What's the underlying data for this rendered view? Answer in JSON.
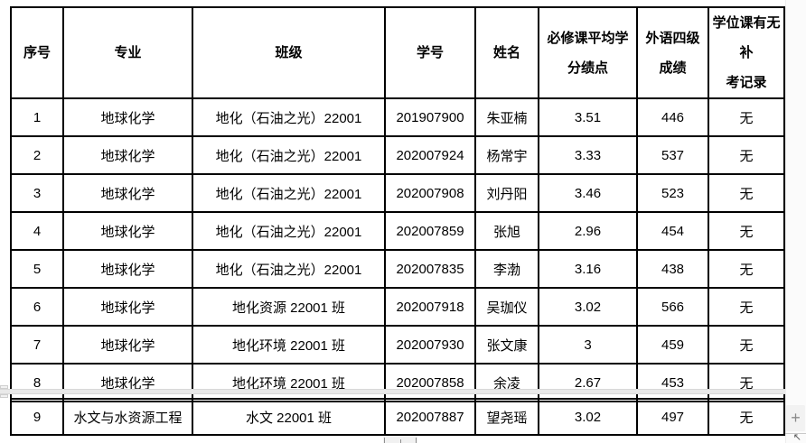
{
  "icons": {
    "plus": "+",
    "resize_arrow": "↖"
  },
  "scrollbar": {
    "plus_label": "+"
  },
  "table": {
    "headers": [
      "序号",
      "专业",
      "班级",
      "学号",
      "姓名",
      "必修课平均学\n分绩点",
      "外语四级\n成绩",
      "学位课有无补\n考记录"
    ],
    "rows": [
      [
        "1",
        "地球化学",
        "地化（石油之光）22001",
        "201907900",
        "朱亚楠",
        "3.51",
        "446",
        "无"
      ],
      [
        "2",
        "地球化学",
        "地化（石油之光）22001",
        "202007924",
        "杨常宇",
        "3.33",
        "537",
        "无"
      ],
      [
        "3",
        "地球化学",
        "地化（石油之光）22001",
        "202007908",
        "刘丹阳",
        "3.46",
        "523",
        "无"
      ],
      [
        "4",
        "地球化学",
        "地化（石油之光）22001",
        "202007859",
        "张旭",
        "2.96",
        "454",
        "无"
      ],
      [
        "5",
        "地球化学",
        "地化（石油之光）22001",
        "202007835",
        "李渤",
        "3.16",
        "438",
        "无"
      ],
      [
        "6",
        "地球化学",
        "地化资源 22001 班",
        "202007918",
        "吴珈仪",
        "3.02",
        "566",
        "无"
      ],
      [
        "7",
        "地球化学",
        "地化环境 22001 班",
        "202007930",
        "张文康",
        "3",
        "459",
        "无"
      ],
      [
        "8",
        "地球化学",
        "地化环境 22001 班",
        "202007858",
        "余凌",
        "2.67",
        "453",
        "无"
      ]
    ],
    "rows_continued": [
      [
        "9",
        "水文与水资源工程",
        "水文 22001 班",
        "202007887",
        "望尧瑶",
        "3.02",
        "497",
        "无"
      ]
    ]
  }
}
